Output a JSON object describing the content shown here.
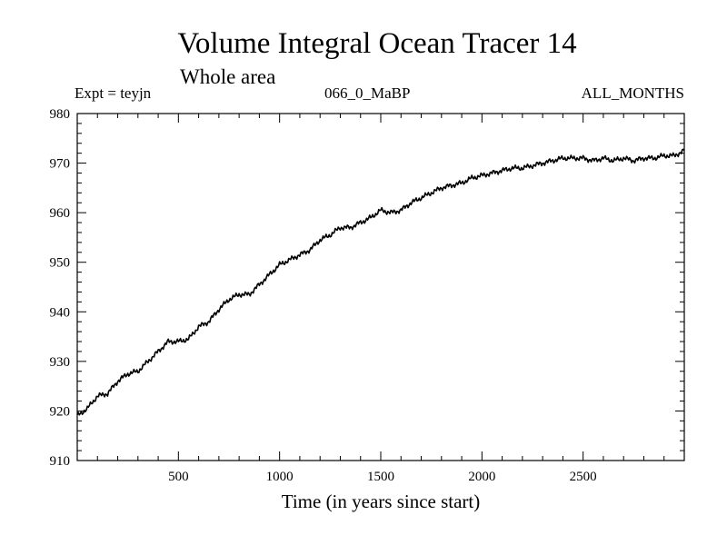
{
  "chart_data": {
    "type": "line",
    "title": "Volume Integral Ocean Tracer 14",
    "subtitle": "Whole area",
    "annotations": {
      "experiment": "Expt = teyjn",
      "run_id": "066_0_MaBP",
      "period": "ALL_MONTHS"
    },
    "xlabel": "Time (in years since start)",
    "ylabel": "",
    "xlim": [
      0,
      3000
    ],
    "ylim": [
      910,
      980
    ],
    "xticks": [
      500,
      1000,
      1500,
      2000,
      2500
    ],
    "xtick_labels": [
      "500",
      "1000",
      "1500",
      "2000",
      "2500"
    ],
    "yticks": [
      910,
      920,
      930,
      940,
      950,
      960,
      970,
      980
    ],
    "ytick_labels": [
      "910",
      "920",
      "930",
      "940",
      "950",
      "960",
      "970",
      "980"
    ],
    "grid": false,
    "series": [
      {
        "name": "Tracer 14",
        "color": "#000000",
        "x": [
          0,
          50,
          100,
          150,
          200,
          250,
          300,
          350,
          400,
          450,
          500,
          550,
          600,
          650,
          700,
          750,
          800,
          850,
          900,
          950,
          1000,
          1050,
          1100,
          1150,
          1200,
          1250,
          1300,
          1350,
          1400,
          1450,
          1500,
          1550,
          1600,
          1650,
          1700,
          1750,
          1800,
          1850,
          1900,
          1950,
          2000,
          2050,
          2100,
          2150,
          2200,
          2250,
          2300,
          2350,
          2400,
          2450,
          2500,
          2550,
          2600,
          2650,
          2700,
          2750,
          2800,
          2850,
          2900,
          2950,
          3000
        ],
        "values": [
          919.0,
          920.5,
          923.0,
          923.5,
          926.0,
          927.5,
          928.0,
          930.0,
          932.0,
          934.0,
          934.0,
          934.5,
          937.0,
          938.0,
          940.5,
          942.5,
          943.5,
          943.5,
          945.5,
          947.5,
          949.5,
          950.5,
          951.5,
          952.5,
          954.5,
          955.5,
          957.0,
          957.0,
          958.0,
          959.0,
          960.5,
          960.0,
          960.5,
          962.0,
          963.0,
          964.0,
          965.0,
          965.5,
          966.0,
          967.0,
          967.5,
          968.0,
          968.5,
          969.0,
          969.0,
          969.5,
          970.0,
          970.5,
          971.0,
          971.0,
          971.0,
          970.5,
          971.0,
          970.5,
          971.0,
          970.5,
          971.0,
          971.0,
          971.5,
          971.5,
          972.5
        ]
      }
    ]
  }
}
